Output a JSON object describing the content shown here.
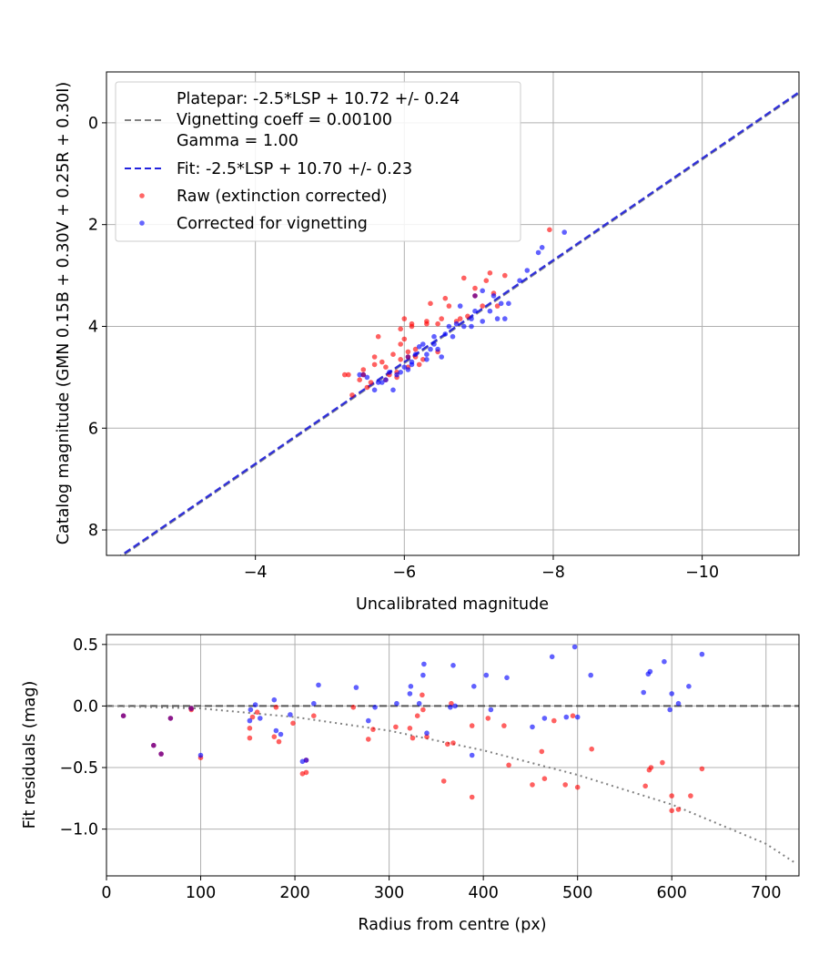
{
  "chart_data": [
    {
      "type": "scatter",
      "title": "",
      "xlabel": "Uncalibrated magnitude",
      "ylabel": "Catalog magnitude (GMN 0.15B + 0.30V + 0.25R + 0.30I)",
      "xlim": [
        -2.0,
        -11.3
      ],
      "ylim": [
        8.5,
        -1.0
      ],
      "x_inverted": true,
      "y_inverted": true,
      "xticks": [
        -4,
        -6,
        -8,
        -10
      ],
      "xtick_labels": [
        "−4",
        "−6",
        "−8",
        "−10"
      ],
      "yticks": [
        0,
        2,
        4,
        6,
        8
      ],
      "ytick_labels": [
        "0",
        "2",
        "4",
        "6",
        "8"
      ],
      "grid": true,
      "legend_position": "upper-left",
      "legend": [
        {
          "key": "platepar",
          "text": "Platepar: -2.5*LSP + 10.72 +/- 0.24",
          "style": "dashed",
          "color": "#808080"
        },
        {
          "key": "vignetting",
          "text": "Vignetting coeff = 0.00100",
          "style": "none",
          "color": "#808080"
        },
        {
          "key": "gamma",
          "text": "Gamma = 1.00",
          "style": "none",
          "color": "#808080"
        },
        {
          "key": "fit",
          "text": "Fit: -2.5*LSP + 10.70 +/- 0.23",
          "style": "dashed",
          "color": "#2222dd"
        },
        {
          "key": "raw",
          "text": "Raw (extinction corrected)",
          "style": "marker",
          "color": "#ff0000"
        },
        {
          "key": "corrected",
          "text": "Corrected for vignetting",
          "style": "marker",
          "color": "#0000ff"
        }
      ],
      "lines": [
        {
          "name": "Platepar",
          "slope": 1.0,
          "intercept": 10.72,
          "color": "#808080"
        },
        {
          "name": "Fit",
          "slope": 1.0,
          "intercept": 10.7,
          "color": "#2222dd"
        }
      ],
      "series": [
        {
          "name": "Raw (extinction corrected)",
          "color": "#ff0000",
          "points": [
            [
              -5.2,
              4.95
            ],
            [
              -5.25,
              4.95
            ],
            [
              -5.3,
              5.35
            ],
            [
              -5.4,
              5.05
            ],
            [
              -5.45,
              4.85
            ],
            [
              -5.5,
              5.2
            ],
            [
              -5.55,
              5.1
            ],
            [
              -5.6,
              4.75
            ],
            [
              -5.6,
              4.6
            ],
            [
              -5.65,
              4.2
            ],
            [
              -5.7,
              4.7
            ],
            [
              -5.75,
              4.8
            ],
            [
              -5.8,
              4.95
            ],
            [
              -5.85,
              4.55
            ],
            [
              -5.9,
              4.9
            ],
            [
              -5.9,
              5.0
            ],
            [
              -5.95,
              4.35
            ],
            [
              -5.95,
              4.05
            ],
            [
              -6.0,
              3.85
            ],
            [
              -6.0,
              4.25
            ],
            [
              -6.05,
              4.5
            ],
            [
              -6.1,
              4.0
            ],
            [
              -6.1,
              3.95
            ],
            [
              -6.15,
              4.6
            ],
            [
              -6.2,
              4.75
            ],
            [
              -6.25,
              4.65
            ],
            [
              -6.3,
              3.9
            ],
            [
              -6.3,
              3.95
            ],
            [
              -6.35,
              3.55
            ],
            [
              -6.45,
              4.5
            ],
            [
              -6.5,
              3.85
            ],
            [
              -6.55,
              3.45
            ],
            [
              -6.6,
              3.6
            ],
            [
              -6.7,
              3.9
            ],
            [
              -6.75,
              3.85
            ],
            [
              -6.8,
              3.05
            ],
            [
              -6.85,
              3.8
            ],
            [
              -6.95,
              3.25
            ],
            [
              -7.05,
              3.6
            ],
            [
              -7.1,
              3.1
            ],
            [
              -7.15,
              2.95
            ],
            [
              -7.2,
              3.35
            ],
            [
              -7.25,
              3.6
            ],
            [
              -7.35,
              3.0
            ],
            [
              -7.95,
              2.1
            ],
            [
              -5.95,
              4.65
            ],
            [
              -6.15,
              4.45
            ],
            [
              -6.05,
              4.8
            ],
            [
              -5.75,
              5.05
            ],
            [
              -6.45,
              3.95
            ]
          ]
        },
        {
          "name": "Corrected for vignetting",
          "color": "#0000ff",
          "points": [
            [
              -5.4,
              4.95
            ],
            [
              -5.5,
              5.0
            ],
            [
              -5.6,
              5.25
            ],
            [
              -5.65,
              5.1
            ],
            [
              -5.7,
              5.1
            ],
            [
              -5.75,
              5.05
            ],
            [
              -5.8,
              4.9
            ],
            [
              -5.85,
              5.25
            ],
            [
              -5.9,
              4.95
            ],
            [
              -6.0,
              4.8
            ],
            [
              -6.05,
              4.85
            ],
            [
              -6.1,
              4.75
            ],
            [
              -6.15,
              4.55
            ],
            [
              -6.2,
              4.4
            ],
            [
              -6.25,
              4.35
            ],
            [
              -6.3,
              4.65
            ],
            [
              -6.35,
              4.45
            ],
            [
              -6.4,
              4.2
            ],
            [
              -6.45,
              4.45
            ],
            [
              -6.5,
              4.6
            ],
            [
              -6.55,
              4.15
            ],
            [
              -6.6,
              4.0
            ],
            [
              -6.65,
              4.2
            ],
            [
              -6.7,
              3.95
            ],
            [
              -6.8,
              4.0
            ],
            [
              -6.9,
              3.85
            ],
            [
              -6.95,
              3.7
            ],
            [
              -7.05,
              3.9
            ],
            [
              -7.15,
              3.7
            ],
            [
              -7.2,
              3.4
            ],
            [
              -7.25,
              3.85
            ],
            [
              -7.3,
              3.55
            ],
            [
              -7.35,
              3.85
            ],
            [
              -7.55,
              3.1
            ],
            [
              -7.65,
              2.9
            ],
            [
              -7.8,
              2.55
            ],
            [
              -7.85,
              2.45
            ],
            [
              -8.15,
              2.15
            ],
            [
              -6.4,
              4.35
            ],
            [
              -6.1,
              4.7
            ],
            [
              -6.75,
              3.6
            ],
            [
              -7.05,
              3.3
            ],
            [
              -6.3,
              4.55
            ],
            [
              -5.95,
              4.9
            ],
            [
              -6.9,
              4.0
            ],
            [
              -7.4,
              3.55
            ]
          ]
        },
        {
          "name": "Overlap",
          "color": "#800080",
          "points": [
            [
              -5.45,
              4.95
            ],
            [
              -6.95,
              3.4
            ],
            [
              -6.05,
              4.6
            ]
          ]
        }
      ]
    },
    {
      "type": "scatter",
      "title": "",
      "xlabel": "Radius from centre (px)",
      "ylabel": "Fit residuals (mag)",
      "xlim": [
        0,
        735
      ],
      "ylim": [
        -1.38,
        0.58
      ],
      "xticks": [
        0,
        100,
        200,
        300,
        400,
        500,
        600,
        700
      ],
      "xtick_labels": [
        "0",
        "100",
        "200",
        "300",
        "400",
        "500",
        "600",
        "700"
      ],
      "yticks": [
        0.5,
        0.0,
        -0.5,
        -1.0
      ],
      "ytick_labels": [
        "0.5",
        "0.0",
        "−0.5",
        "−1.0"
      ],
      "grid": true,
      "zero_line": {
        "y": 0,
        "style": "dashed",
        "color": "#555555"
      },
      "vignetting_curve": {
        "style": "dotted",
        "color": "#808080",
        "points": [
          [
            0,
            0.0
          ],
          [
            100,
            -0.02
          ],
          [
            200,
            -0.09
          ],
          [
            300,
            -0.2
          ],
          [
            400,
            -0.36
          ],
          [
            500,
            -0.56
          ],
          [
            600,
            -0.8
          ],
          [
            700,
            -1.12
          ],
          [
            730,
            -1.27
          ]
        ]
      },
      "series": [
        {
          "name": "Raw (extinction corrected)",
          "color": "#ff0000",
          "points": [
            [
              90,
              -0.03
            ],
            [
              100,
              -0.42
            ],
            [
              152,
              -0.18
            ],
            [
              152,
              -0.26
            ],
            [
              155,
              -0.09
            ],
            [
              160,
              -0.05
            ],
            [
              178,
              -0.25
            ],
            [
              180,
              -0.01
            ],
            [
              183,
              -0.29
            ],
            [
              198,
              -0.14
            ],
            [
              208,
              -0.55
            ],
            [
              212,
              -0.54
            ],
            [
              220,
              -0.08
            ],
            [
              262,
              -0.01
            ],
            [
              278,
              -0.27
            ],
            [
              283,
              -0.19
            ],
            [
              307,
              -0.17
            ],
            [
              322,
              -0.18
            ],
            [
              325,
              -0.26
            ],
            [
              330,
              -0.08
            ],
            [
              335,
              0.09
            ],
            [
              336,
              -0.03
            ],
            [
              340,
              -0.25
            ],
            [
              358,
              -0.61
            ],
            [
              362,
              -0.31
            ],
            [
              366,
              0.02
            ],
            [
              368,
              -0.3
            ],
            [
              388,
              -0.16
            ],
            [
              388,
              -0.74
            ],
            [
              405,
              -0.1
            ],
            [
              422,
              -0.16
            ],
            [
              427,
              -0.48
            ],
            [
              452,
              -0.64
            ],
            [
              462,
              -0.37
            ],
            [
              465,
              -0.59
            ],
            [
              475,
              -0.12
            ],
            [
              487,
              -0.64
            ],
            [
              495,
              -0.08
            ],
            [
              500,
              -0.66
            ],
            [
              515,
              -0.35
            ],
            [
              572,
              -0.65
            ],
            [
              576,
              -0.52
            ],
            [
              578,
              -0.5
            ],
            [
              590,
              -0.46
            ],
            [
              600,
              -0.85
            ],
            [
              600,
              -0.73
            ],
            [
              607,
              -0.84
            ],
            [
              620,
              -0.73
            ],
            [
              632,
              -0.51
            ],
            [
              212,
              -0.44
            ]
          ]
        },
        {
          "name": "Corrected for vignetting",
          "color": "#0000ff",
          "points": [
            [
              100,
              -0.4
            ],
            [
              152,
              -0.12
            ],
            [
              153,
              -0.03
            ],
            [
              158,
              0.01
            ],
            [
              163,
              -0.1
            ],
            [
              178,
              0.05
            ],
            [
              180,
              -0.2
            ],
            [
              185,
              -0.23
            ],
            [
              195,
              -0.07
            ],
            [
              208,
              -0.45
            ],
            [
              212,
              -0.44
            ],
            [
              220,
              0.02
            ],
            [
              225,
              0.17
            ],
            [
              265,
              0.15
            ],
            [
              278,
              -0.12
            ],
            [
              285,
              -0.01
            ],
            [
              308,
              0.02
            ],
            [
              322,
              0.1
            ],
            [
              323,
              0.16
            ],
            [
              332,
              0.02
            ],
            [
              336,
              0.25
            ],
            [
              337,
              0.34
            ],
            [
              340,
              -0.22
            ],
            [
              365,
              -0.01
            ],
            [
              368,
              0.33
            ],
            [
              370,
              0.0
            ],
            [
              388,
              -0.4
            ],
            [
              390,
              0.16
            ],
            [
              403,
              0.25
            ],
            [
              408,
              -0.03
            ],
            [
              425,
              0.23
            ],
            [
              452,
              -0.17
            ],
            [
              465,
              -0.1
            ],
            [
              473,
              0.4
            ],
            [
              488,
              -0.09
            ],
            [
              497,
              0.48
            ],
            [
              500,
              -0.09
            ],
            [
              514,
              0.25
            ],
            [
              570,
              0.11
            ],
            [
              575,
              0.26
            ],
            [
              577,
              0.28
            ],
            [
              592,
              0.36
            ],
            [
              598,
              -0.03
            ],
            [
              600,
              0.1
            ],
            [
              607,
              0.02
            ],
            [
              618,
              0.16
            ],
            [
              632,
              0.42
            ]
          ]
        },
        {
          "name": "Overlap",
          "color": "#800080",
          "points": [
            [
              18,
              -0.08
            ],
            [
              50,
              -0.32
            ],
            [
              58,
              -0.39
            ],
            [
              68,
              -0.1
            ],
            [
              90,
              -0.02
            ]
          ]
        }
      ]
    }
  ]
}
